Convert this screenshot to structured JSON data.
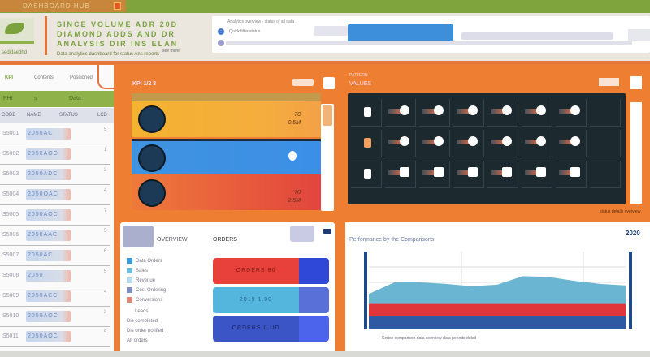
{
  "topbar": {
    "title": "DASHBOARD HUB"
  },
  "header": {
    "logo_text": "sedidaedhd",
    "lines": [
      "SINCE  VOLUME ADR 20D",
      "DIAMOND  ADDS  AND  DR",
      "ANALYSIS  DIR  INS  ELAN"
    ],
    "subline": "Data analytics dashboard for status Ans reports",
    "small": "see more",
    "panel_title": "Analytics overview - status of all data",
    "panel_text": "Quick filter status"
  },
  "left": {
    "tabs": [
      "KPI",
      "Contents",
      "Positioned"
    ],
    "green_row": [
      "PHI",
      "s",
      "Data"
    ],
    "columns": [
      "CODE",
      "NAME",
      "STATUS",
      "LCD"
    ],
    "rows": [
      {
        "id": "S5001",
        "name": "2050AC",
        "n": "5"
      },
      {
        "id": "S5002",
        "name": "2050AOC",
        "n": "1"
      },
      {
        "id": "S5003",
        "name": "2050ADC",
        "n": "3"
      },
      {
        "id": "S5004",
        "name": "2050OAC",
        "n": "4"
      },
      {
        "id": "S5005",
        "name": "2050AOC",
        "n": "7"
      },
      {
        "id": "S5006",
        "name": "2050AAC",
        "n": "5"
      },
      {
        "id": "S5007",
        "name": "2050AC",
        "n": "6"
      },
      {
        "id": "S5008",
        "name": "2050",
        "n": "5"
      },
      {
        "id": "S5009",
        "name": "2050ACC",
        "n": "4"
      },
      {
        "id": "S5010",
        "name": "2050AOC",
        "n": "3"
      },
      {
        "id": "S5011",
        "name": "2050AOC",
        "n": "5"
      }
    ]
  },
  "main": {
    "card_title": "KPI 1/2 3",
    "bands": [
      {
        "value": "70",
        "label": "0.5M"
      },
      {
        "value": "",
        "label": ""
      },
      {
        "value": "70",
        "label": "2.5M"
      }
    ],
    "grid_title_small": "PATTERN",
    "grid_title": "VALUES",
    "grid_footer": "status details overview"
  },
  "bottom_left": {
    "title1": "OVERVIEW",
    "title2": "ORDERS",
    "legend": [
      "Data Orders",
      "Sales",
      "Revenue",
      "Cost Ordering",
      "Conversions"
    ],
    "notes": [
      "Leads",
      "Dis completed",
      "Dis order notified",
      "Alt orders"
    ],
    "blocks": [
      "ORDERS 86",
      "2019 1.00",
      "ORDERS 0 UD"
    ],
    "colors": [
      "#e8403a",
      "#4cb4d8",
      "#3f55c4"
    ]
  },
  "bottom_right": {
    "title": "Performance by the Comparisons",
    "badge": "2020",
    "footer": "Series  comparison  data  overview  data  periods  detail"
  },
  "chart_data": {
    "type": "area",
    "title": "Performance by the Comparisons",
    "x": [
      0,
      1,
      2,
      3,
      4,
      5,
      6,
      7,
      8,
      9,
      10
    ],
    "series": [
      {
        "color": "#6ab6d2",
        "values": [
          45,
          60,
          60,
          58,
          55,
          57,
          68,
          67,
          62,
          58,
          56
        ]
      },
      {
        "color": "#e0363a",
        "values": [
          32,
          32,
          32,
          32,
          32,
          32,
          32,
          32,
          32,
          32,
          32
        ]
      },
      {
        "color": "#2e5aa4",
        "values": [
          16,
          16,
          16,
          16,
          16,
          16,
          16,
          16,
          16,
          16,
          16
        ]
      }
    ],
    "ylim": [
      0,
      100
    ],
    "grid": true
  }
}
